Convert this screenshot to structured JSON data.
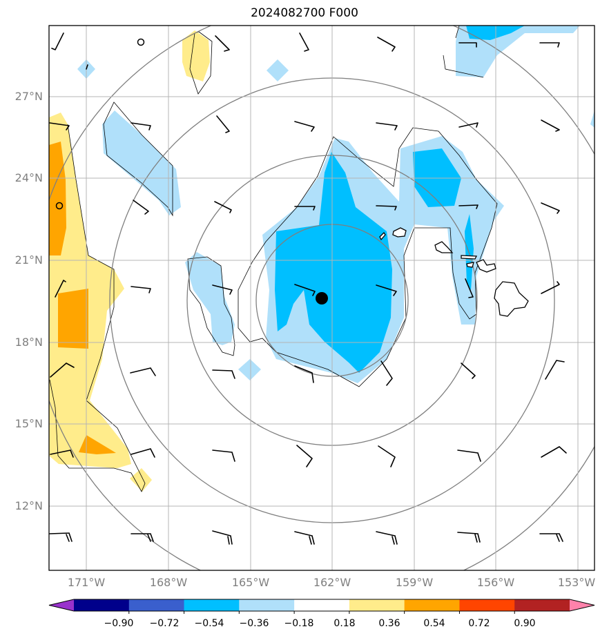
{
  "title": "2024082700 F000",
  "lat_labels": [
    "27°N",
    "24°N",
    "21°N",
    "18°N",
    "15°N",
    "12°N"
  ],
  "lon_labels": [
    "171°W",
    "168°W",
    "165°W",
    "162°W",
    "159°W",
    "156°W",
    "153°W"
  ],
  "colorbar": {
    "tick_labels": [
      "−0.90",
      "−0.72",
      "−0.54",
      "−0.36",
      "−0.18",
      "0.18",
      "0.36",
      "0.54",
      "0.72",
      "0.90"
    ],
    "colors": [
      "#9932cc",
      "#00008b",
      "#3a5fcd",
      "#00bfff",
      "#b0e0fa",
      "#ffffff",
      "#ffec8b",
      "#ffa500",
      "#ff4500",
      "#b22222",
      "#ff82ab"
    ]
  },
  "map": {
    "extent": {
      "lon_min": -172.3,
      "lon_max": -152.3,
      "lat_min": 9.7,
      "lat_max": 29.7
    },
    "center_marker": {
      "lon": -162.4,
      "lat": 19.9
    },
    "range_rings": "concentric circles around center",
    "wind_barbs": "regular grid of wind barbs",
    "features": [
      "Hawaiian Islands",
      "anomaly shading"
    ]
  }
}
